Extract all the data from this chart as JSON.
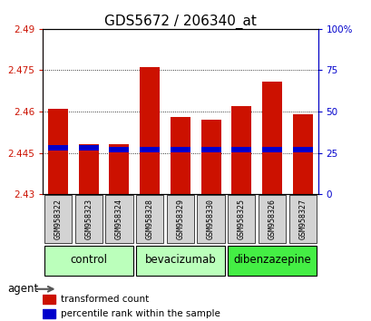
{
  "title": "GDS5672 / 206340_at",
  "samples": [
    "GSM958322",
    "GSM958323",
    "GSM958324",
    "GSM958328",
    "GSM958329",
    "GSM958330",
    "GSM958325",
    "GSM958326",
    "GSM958327"
  ],
  "group_configs": [
    {
      "name": "control",
      "indices": [
        0,
        1,
        2
      ],
      "color": "#bbffbb"
    },
    {
      "name": "bevacizumab",
      "indices": [
        3,
        4,
        5
      ],
      "color": "#bbffbb"
    },
    {
      "name": "dibenzazepine",
      "indices": [
        6,
        7,
        8
      ],
      "color": "#44ee44"
    }
  ],
  "transformed_counts": [
    2.461,
    2.448,
    2.448,
    2.476,
    2.458,
    2.457,
    2.462,
    2.471,
    2.459
  ],
  "percentile_ranks": [
    28,
    28,
    27,
    27,
    27,
    27,
    27,
    27,
    27
  ],
  "y_min": 2.43,
  "y_max": 2.49,
  "y_ticks": [
    2.43,
    2.445,
    2.46,
    2.475,
    2.49
  ],
  "y_right_ticks": [
    0,
    25,
    50,
    75,
    100
  ],
  "bar_color_red": "#cc1100",
  "bar_color_blue": "#0000cc",
  "bar_width": 0.65,
  "legend_red": "transformed count",
  "legend_blue": "percentile rank within the sample",
  "title_fontsize": 11,
  "tick_fontsize": 7.5,
  "sample_fontsize": 6.0,
  "group_fontsize": 8.5,
  "legend_fontsize": 7.5
}
